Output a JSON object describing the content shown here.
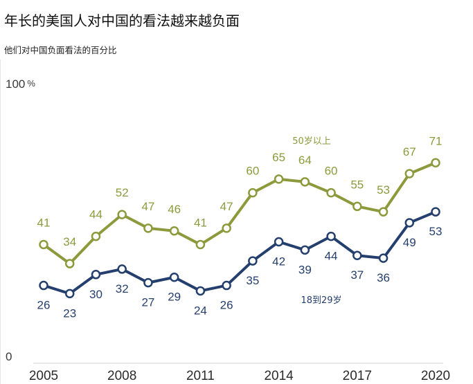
{
  "header": {
    "title": "年长的美国人对中国的看法越来越负面",
    "subtitle": "他们对中国负面看法的百分比"
  },
  "chart_data": {
    "type": "line",
    "title": "年长的美国人对中国的看法越来越负面",
    "subtitle": "他们对中国负面看法的百分比",
    "xlabel": "",
    "ylabel": "",
    "ylim": [
      0,
      100
    ],
    "xlim": [
      2005,
      2020
    ],
    "x_ticks": [
      "2005",
      "2008",
      "2011",
      "2014",
      "2017",
      "2020"
    ],
    "y_ticks": [
      {
        "value": 100,
        "label": "100",
        "suffix": "%"
      },
      {
        "value": 0,
        "label": "0",
        "suffix": ""
      }
    ],
    "x": [
      2005,
      2006,
      2007,
      2008,
      2009,
      2010,
      2011,
      2012,
      2013,
      2014,
      2015,
      2016,
      2017,
      2018,
      2019,
      2020
    ],
    "grid": false,
    "series": [
      {
        "name": "50岁以上",
        "color": "#8c9a3c",
        "values": [
          41,
          34,
          44,
          52,
          47,
          46,
          41,
          47,
          60,
          65,
          64,
          60,
          55,
          53,
          67,
          71
        ]
      },
      {
        "name": "18到29岁",
        "color": "#243f6e",
        "values": [
          26,
          23,
          30,
          32,
          27,
          29,
          24,
          26,
          35,
          42,
          39,
          44,
          37,
          36,
          49,
          53
        ]
      }
    ]
  }
}
